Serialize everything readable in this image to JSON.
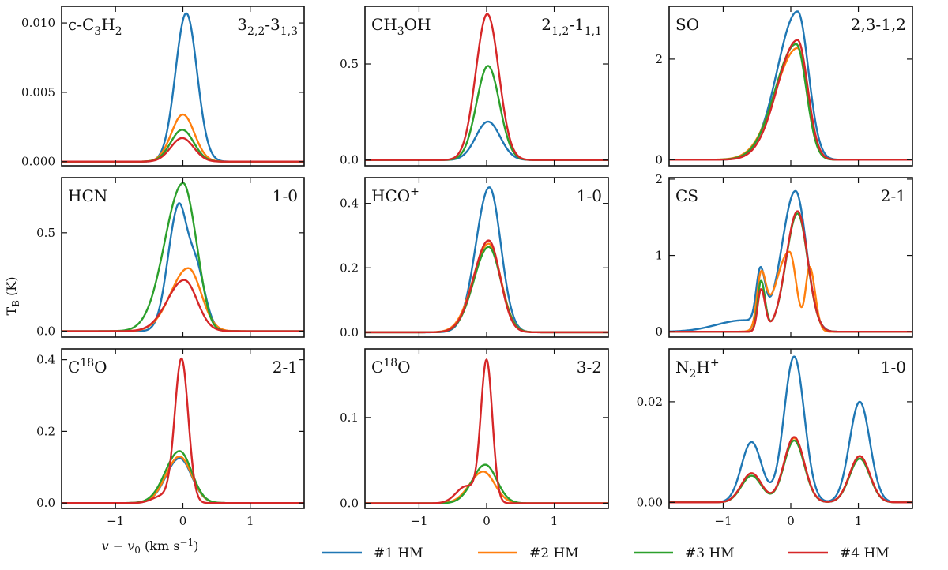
{
  "chart_data": {
    "type": "line",
    "xlabel": "v − v0 (km s⁻¹)",
    "ylabel": "TB (K)",
    "xlim": [
      -1.8,
      1.8
    ],
    "xticks": [
      -1,
      0,
      1
    ],
    "xtick_labels": [
      "−1",
      "0",
      "1"
    ],
    "legend": {
      "placement": "bottom",
      "entries": [
        {
          "label": "#1 HM",
          "color": "#1f77b4"
        },
        {
          "label": "#2 HM",
          "color": "#ff7f0e"
        },
        {
          "label": "#3 HM",
          "color": "#2ca02c"
        },
        {
          "label": "#4 HM",
          "color": "#d62728"
        }
      ]
    },
    "panels": [
      {
        "molecule": {
          "base": "c-C",
          "sub1": "3",
          "mid": "H",
          "sub2": "2"
        },
        "transition": {
          "a": "3",
          "as": "2,2",
          "mid": "-3",
          "bs": "1,3"
        },
        "ylim": [
          -0.0003,
          0.0112
        ],
        "yticks": [
          0,
          0.005,
          0.01
        ],
        "ytick_labels": [
          "0.000",
          "0.005",
          "0.010"
        ],
        "series": [
          {
            "name": "#1 HM",
            "color": "#1f77b4",
            "components": [
              [
                0.0107,
                0.05,
                0.16,
                0.16
              ]
            ]
          },
          {
            "name": "#2 HM",
            "color": "#ff7f0e",
            "components": [
              [
                0.0034,
                0.0,
                0.17,
                0.17
              ]
            ]
          },
          {
            "name": "#3 HM",
            "color": "#2ca02c",
            "components": [
              [
                0.0023,
                -0.01,
                0.17,
                0.17
              ]
            ]
          },
          {
            "name": "#4 HM",
            "color": "#d62728",
            "components": [
              [
                0.0017,
                -0.01,
                0.17,
                0.17
              ]
            ]
          }
        ]
      },
      {
        "molecule": {
          "base": "CH",
          "sub1": "3",
          "mid": "OH",
          "sub2": ""
        },
        "transition": {
          "a": "2",
          "as": "1,2",
          "mid": "-1",
          "bs": "1,1"
        },
        "ylim": [
          -0.03,
          0.8
        ],
        "yticks": [
          0,
          0.5
        ],
        "ytick_labels": [
          "0.0",
          "0.5"
        ],
        "series": [
          {
            "name": "#1 HM",
            "color": "#1f77b4",
            "components": [
              [
                0.2,
                0.02,
                0.18,
                0.18
              ]
            ]
          },
          {
            "name": "#3 HM",
            "color": "#2ca02c",
            "components": [
              [
                0.49,
                0.02,
                0.17,
                0.17
              ]
            ]
          },
          {
            "name": "#4 HM",
            "color": "#d62728",
            "components": [
              [
                0.76,
                0.01,
                0.17,
                0.17
              ]
            ]
          }
        ]
      },
      {
        "molecule": {
          "base": "SO",
          "sub1": "",
          "mid": "",
          "sub2": ""
        },
        "transition": {
          "plain": "2,3-1,2"
        },
        "ylim": [
          -0.12,
          3.05
        ],
        "yticks": [
          0,
          2
        ],
        "ytick_labels": [
          "0",
          "2"
        ],
        "series": [
          {
            "name": "#1 HM",
            "color": "#1f77b4",
            "components": [
              [
                2.95,
                0.1,
                0.3,
                0.16
              ]
            ]
          },
          {
            "name": "#2 HM",
            "color": "#ff7f0e",
            "components": [
              [
                2.22,
                0.1,
                0.33,
                0.15
              ]
            ]
          },
          {
            "name": "#3 HM",
            "color": "#2ca02c",
            "components": [
              [
                2.3,
                0.08,
                0.31,
                0.15
              ]
            ]
          },
          {
            "name": "#4 HM",
            "color": "#d62728",
            "components": [
              [
                2.38,
                0.1,
                0.3,
                0.15
              ]
            ]
          }
        ]
      },
      {
        "molecule": {
          "base": "HCN",
          "sub1": "",
          "mid": "",
          "sub2": ""
        },
        "transition": {
          "plain": "1-0"
        },
        "ylim": [
          -0.03,
          0.78
        ],
        "yticks": [
          0,
          0.5
        ],
        "ytick_labels": [
          "0.0",
          "0.5"
        ],
        "series": [
          {
            "name": "#1 HM",
            "color": "#1f77b4",
            "components": [
              [
                0.58,
                -0.08,
                0.15,
                0.12
              ],
              [
                0.34,
                0.18,
                0.14,
                0.14
              ]
            ]
          },
          {
            "name": "#2 HM",
            "color": "#ff7f0e",
            "components": [
              [
                0.32,
                0.08,
                0.26,
                0.19
              ]
            ]
          },
          {
            "name": "#3 HM",
            "color": "#2ca02c",
            "components": [
              [
                0.75,
                0.0,
                0.27,
                0.18
              ],
              [
                0.06,
                0.25,
                0.1,
                0.1
              ]
            ]
          },
          {
            "name": "#4 HM",
            "color": "#d62728",
            "components": [
              [
                0.26,
                0.02,
                0.25,
                0.19
              ]
            ]
          }
        ]
      },
      {
        "molecule": {
          "base": "HCO",
          "sup": "+"
        },
        "transition": {
          "plain": "1-0"
        },
        "ylim": [
          -0.015,
          0.48
        ],
        "yticks": [
          0,
          0.2,
          0.4
        ],
        "ytick_labels": [
          "0.0",
          "0.2",
          "0.4"
        ],
        "series": [
          {
            "name": "#1 HM",
            "color": "#1f77b4",
            "components": [
              [
                0.45,
                0.04,
                0.2,
                0.17
              ]
            ]
          },
          {
            "name": "#2 HM",
            "color": "#ff7f0e",
            "components": [
              [
                0.275,
                0.03,
                0.23,
                0.18
              ]
            ]
          },
          {
            "name": "#3 HM",
            "color": "#2ca02c",
            "components": [
              [
                0.265,
                0.03,
                0.22,
                0.18
              ]
            ]
          },
          {
            "name": "#4 HM",
            "color": "#d62728",
            "components": [
              [
                0.285,
                0.03,
                0.22,
                0.17
              ]
            ]
          }
        ]
      },
      {
        "molecule": {
          "base": "CS",
          "sub1": "",
          "mid": "",
          "sub2": ""
        },
        "transition": {
          "plain": "2-1"
        },
        "ylim": [
          -0.07,
          2.02
        ],
        "yticks": [
          0,
          1,
          2
        ],
        "ytick_labels": [
          "0",
          "1",
          "2"
        ],
        "series": [
          {
            "name": "#1 HM",
            "color": "#1f77b4",
            "components": [
              [
                0.68,
                -0.45,
                0.06,
                0.07
              ],
              [
                1.84,
                0.07,
                0.2,
                0.16
              ],
              [
                0.15,
                -0.7,
                0.4,
                0.3
              ]
            ]
          },
          {
            "name": "#2 HM",
            "color": "#ff7f0e",
            "components": [
              [
                0.68,
                -0.44,
                0.06,
                0.07
              ],
              [
                1.05,
                -0.02,
                0.2,
                0.1
              ],
              [
                0.84,
                0.28,
                0.06,
                0.08
              ]
            ]
          },
          {
            "name": "#3 HM",
            "color": "#2ca02c",
            "components": [
              [
                0.66,
                -0.44,
                0.05,
                0.06
              ],
              [
                1.55,
                0.1,
                0.17,
                0.15
              ]
            ]
          },
          {
            "name": "#4 HM",
            "color": "#d62728",
            "components": [
              [
                0.55,
                -0.44,
                0.05,
                0.06
              ],
              [
                1.58,
                0.1,
                0.17,
                0.15
              ]
            ]
          }
        ]
      },
      {
        "molecule": {
          "base": "C",
          "sup": "18",
          "after": "O"
        },
        "transition": {
          "plain": "2-1"
        },
        "ylim": [
          -0.015,
          0.43
        ],
        "yticks": [
          0,
          0.2,
          0.4
        ],
        "ytick_labels": [
          "0.0",
          "0.2",
          "0.4"
        ],
        "series": [
          {
            "name": "#1 HM",
            "color": "#1f77b4",
            "components": [
              [
                0.125,
                -0.05,
                0.2,
                0.18
              ]
            ]
          },
          {
            "name": "#2 HM",
            "color": "#ff7f0e",
            "components": [
              [
                0.13,
                -0.05,
                0.2,
                0.18
              ]
            ]
          },
          {
            "name": "#3 HM",
            "color": "#2ca02c",
            "components": [
              [
                0.145,
                -0.05,
                0.21,
                0.18
              ]
            ]
          },
          {
            "name": "#4 HM",
            "color": "#d62728",
            "components": [
              [
                0.4,
                -0.02,
                0.1,
                0.1
              ],
              [
                0.02,
                -0.3,
                0.15,
                0.15
              ]
            ]
          }
        ]
      },
      {
        "molecule": {
          "base": "C",
          "sup": "18",
          "after": "O"
        },
        "transition": {
          "plain": "3-2"
        },
        "ylim": [
          -0.006,
          0.18
        ],
        "yticks": [
          0,
          0.1
        ],
        "ytick_labels": [
          "0.0",
          "0.1"
        ],
        "series": [
          {
            "name": "#2 HM",
            "color": "#ff7f0e",
            "components": [
              [
                0.037,
                -0.05,
                0.2,
                0.17
              ]
            ]
          },
          {
            "name": "#3 HM",
            "color": "#2ca02c",
            "components": [
              [
                0.045,
                -0.02,
                0.19,
                0.17
              ]
            ]
          },
          {
            "name": "#4 HM",
            "color": "#d62728",
            "components": [
              [
                0.165,
                0.0,
                0.085,
                0.085
              ],
              [
                0.02,
                -0.3,
                0.15,
                0.15
              ]
            ]
          }
        ]
      },
      {
        "molecule": {
          "base": "N",
          "sub1": "2",
          "mid": "H",
          "sub2": "",
          "sup": "+"
        },
        "transition": {
          "plain": "1-0"
        },
        "ylim": [
          -0.0012,
          0.0305
        ],
        "yticks": [
          0,
          0.02
        ],
        "ytick_labels": [
          "0.00",
          "0.02"
        ],
        "series": [
          {
            "name": "#1 HM",
            "color": "#1f77b4",
            "components": [
              [
                0.012,
                -0.58,
                0.15,
                0.15
              ],
              [
                0.029,
                0.05,
                0.15,
                0.15
              ],
              [
                0.02,
                1.02,
                0.15,
                0.15
              ]
            ]
          },
          {
            "name": "#2 HM",
            "color": "#ff7f0e",
            "components": [
              [
                0.0058,
                -0.58,
                0.15,
                0.15
              ],
              [
                0.0128,
                0.05,
                0.15,
                0.15
              ],
              [
                0.0092,
                1.02,
                0.15,
                0.15
              ]
            ]
          },
          {
            "name": "#3 HM",
            "color": "#2ca02c",
            "components": [
              [
                0.0053,
                -0.58,
                0.15,
                0.15
              ],
              [
                0.0123,
                0.05,
                0.15,
                0.15
              ],
              [
                0.0087,
                1.02,
                0.15,
                0.15
              ]
            ]
          },
          {
            "name": "#4 HM",
            "color": "#d62728",
            "components": [
              [
                0.0058,
                -0.58,
                0.15,
                0.15
              ],
              [
                0.013,
                0.05,
                0.15,
                0.15
              ],
              [
                0.0092,
                1.02,
                0.15,
                0.15
              ]
            ]
          }
        ]
      }
    ]
  }
}
